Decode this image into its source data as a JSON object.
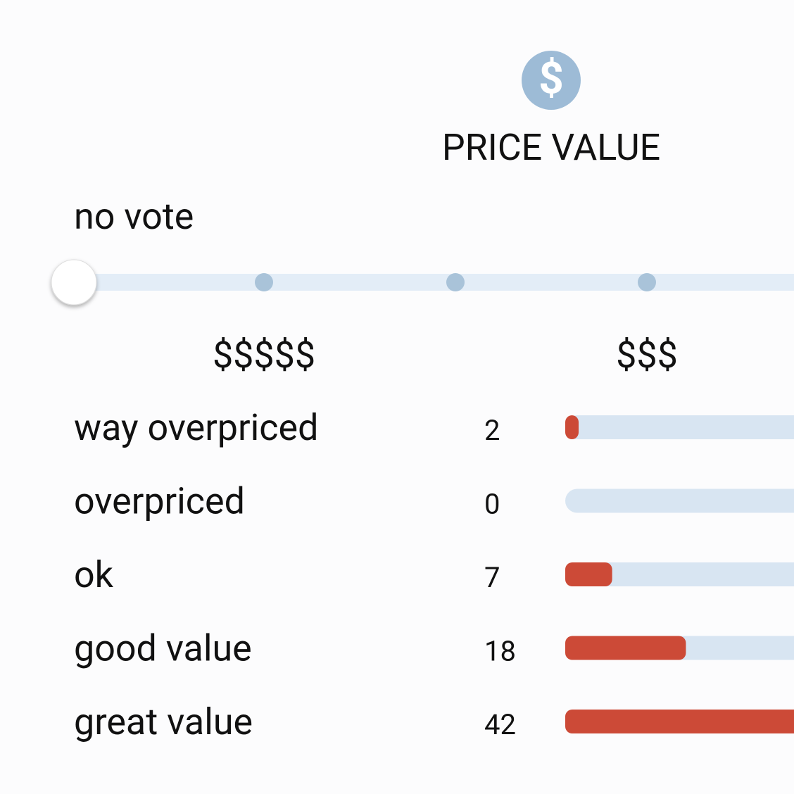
{
  "header": {
    "icon": "$",
    "title": "PRICE VALUE"
  },
  "slider": {
    "current": "no vote",
    "labels": [
      "$$$$$",
      "$$$"
    ]
  },
  "rows": [
    {
      "label": "way overpriced",
      "count": 2
    },
    {
      "label": "overpriced",
      "count": 0
    },
    {
      "label": "ok",
      "count": 7
    },
    {
      "label": "good value",
      "count": 18
    },
    {
      "label": "great value",
      "count": 42
    }
  ]
}
